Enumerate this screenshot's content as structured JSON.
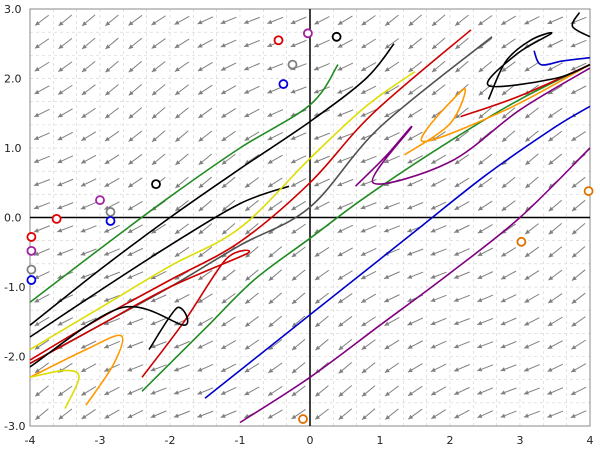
{
  "chart_data": {
    "type": "phase_portrait",
    "xlim": [
      -4,
      4
    ],
    "ylim": [
      -3,
      3
    ],
    "x_ticks": [
      {
        "value": -4,
        "label": "-4"
      },
      {
        "value": -3,
        "label": "-3"
      },
      {
        "value": -2,
        "label": "-2"
      },
      {
        "value": -1,
        "label": "-1"
      },
      {
        "value": 0,
        "label": "0"
      },
      {
        "value": 1,
        "label": "1"
      },
      {
        "value": 2,
        "label": "2"
      },
      {
        "value": 3,
        "label": "3"
      },
      {
        "value": 4,
        "label": "4"
      }
    ],
    "y_ticks": [
      {
        "value": -3,
        "label": "-3.0"
      },
      {
        "value": -2,
        "label": "-2.0"
      },
      {
        "value": -1,
        "label": "-1.0"
      },
      {
        "value": 0,
        "label": "0.0"
      },
      {
        "value": 1,
        "label": "1.0"
      },
      {
        "value": 2,
        "label": "2.0"
      },
      {
        "value": 3,
        "label": "3.0"
      }
    ],
    "grid": true,
    "vector_field": {
      "color": "#808080",
      "x_step": 0.3333,
      "y_step": 0.3333,
      "x_start": -3.83,
      "y_start": -2.83
    },
    "trajectories": [
      {
        "color": "#228b22",
        "points": [
          [
            -4,
            -1.22
          ],
          [
            -3,
            -0.45
          ],
          [
            -2,
            0.3
          ],
          [
            -1,
            1.0
          ],
          [
            0,
            1.62
          ],
          [
            0.4,
            2.2
          ]
        ]
      },
      {
        "color": "#000000",
        "points": [
          [
            -4,
            -1.55
          ],
          [
            -3,
            -0.75
          ],
          [
            -2,
            0.0
          ],
          [
            -1,
            0.7
          ],
          [
            0,
            1.38
          ],
          [
            0.8,
            2.0
          ],
          [
            1.2,
            2.5
          ]
        ]
      },
      {
        "color": "#000000",
        "points": [
          [
            -4,
            -1.72
          ],
          [
            -3,
            -1.05
          ],
          [
            -2,
            -0.4
          ],
          [
            -1,
            0.2
          ],
          [
            -0.3,
            0.45
          ]
        ]
      },
      {
        "color": "#dddd00",
        "points": [
          [
            -4,
            -1.9
          ],
          [
            -3,
            -1.3
          ],
          [
            -2,
            -0.7
          ],
          [
            -1,
            -0.15
          ],
          [
            0,
            0.85
          ],
          [
            0.8,
            1.6
          ],
          [
            1.5,
            2.1
          ]
        ]
      },
      {
        "color": "#cc0000",
        "points": [
          [
            -4,
            -2.05
          ],
          [
            -3,
            -1.45
          ],
          [
            -2,
            -0.9
          ],
          [
            -1,
            -0.35
          ],
          [
            0,
            0.5
          ],
          [
            0.9,
            1.5
          ],
          [
            2.3,
            2.7
          ]
        ]
      },
      {
        "color": "#505050",
        "points": [
          [
            -4,
            -2.1
          ],
          [
            -3,
            -1.55
          ],
          [
            -2,
            -1.0
          ],
          [
            -1,
            -0.4
          ],
          [
            0,
            0.15
          ],
          [
            1,
            1.3
          ],
          [
            2.6,
            2.6
          ]
        ]
      },
      {
        "color": "#228b22",
        "points": [
          [
            -2.4,
            -2.5
          ],
          [
            -1.5,
            -1.6
          ],
          [
            -0.8,
            -0.9
          ],
          [
            0,
            -0.3
          ],
          [
            0.8,
            0.3
          ],
          [
            2,
            1.1
          ],
          [
            3,
            1.7
          ],
          [
            4,
            2.2
          ]
        ]
      },
      {
        "color": "#cc0000",
        "points": [
          [
            -2.4,
            -2.3
          ],
          [
            -1.8,
            -1.5
          ],
          [
            -1.2,
            -0.6
          ],
          [
            -0.9,
            -0.52
          ],
          [
            -2,
            -1.0
          ],
          [
            -3,
            -1.55
          ],
          [
            -4,
            -2.1
          ]
        ]
      },
      {
        "color": "#000000",
        "points": [
          [
            -2.3,
            -1.9
          ],
          [
            -1.9,
            -1.3
          ],
          [
            -1.8,
            -1.55
          ],
          [
            -2.7,
            -1.3
          ],
          [
            -4,
            -2.15
          ]
        ]
      },
      {
        "color": "#ff9900",
        "points": [
          [
            -3.2,
            -2.7
          ],
          [
            -2.8,
            -2.1
          ],
          [
            -2.7,
            -1.7
          ],
          [
            -3.2,
            -1.9
          ],
          [
            -4,
            -2.3
          ]
        ]
      },
      {
        "color": "#dddd00",
        "points": [
          [
            -3.5,
            -2.75
          ],
          [
            -3.3,
            -2.3
          ],
          [
            -3.5,
            -2.2
          ],
          [
            -4,
            -2.3
          ]
        ]
      },
      {
        "color": "#0000cc",
        "points": [
          [
            -1.5,
            -2.6
          ],
          [
            -0.5,
            -1.8
          ],
          [
            0.5,
            -1.0
          ],
          [
            1.5,
            -0.2
          ],
          [
            2.5,
            0.6
          ],
          [
            3.5,
            1.3
          ],
          [
            4,
            1.6
          ]
        ]
      },
      {
        "color": "#800080",
        "points": [
          [
            -1.0,
            -2.95
          ],
          [
            0,
            -2.3
          ],
          [
            1,
            -1.55
          ],
          [
            2,
            -0.8
          ],
          [
            3,
            0.0
          ],
          [
            4,
            1.0
          ]
        ]
      },
      {
        "color": "#800080",
        "points": [
          [
            0.65,
            0.45
          ],
          [
            1.1,
            0.9
          ],
          [
            1.45,
            1.3
          ],
          [
            0.9,
            0.5
          ],
          [
            2,
            0.8
          ],
          [
            3,
            1.55
          ],
          [
            4,
            2.15
          ]
        ]
      },
      {
        "color": "#ff9900",
        "points": [
          [
            1.35,
            0.9
          ],
          [
            2,
            1.35
          ],
          [
            2.2,
            1.85
          ],
          [
            1.6,
            1.1
          ],
          [
            2.8,
            1.55
          ],
          [
            4,
            2.2
          ]
        ]
      },
      {
        "color": "#cc0000",
        "points": [
          [
            2.15,
            1.45
          ],
          [
            3,
            1.75
          ],
          [
            4,
            2.2
          ]
        ]
      },
      {
        "color": "#000000",
        "points": [
          [
            2.55,
            1.7
          ],
          [
            2.8,
            2.25
          ],
          [
            3.15,
            2.55
          ],
          [
            3.45,
            2.65
          ],
          [
            2.95,
            2.35
          ],
          [
            2.55,
            1.9
          ],
          [
            3.5,
            2.0
          ],
          [
            4,
            2.2
          ]
        ]
      },
      {
        "color": "#0000cc",
        "points": [
          [
            3.2,
            2.4
          ],
          [
            3.3,
            2.2
          ],
          [
            3.6,
            2.25
          ],
          [
            4,
            2.3
          ]
        ]
      },
      {
        "color": "#000000",
        "points": [
          [
            3.85,
            2.95
          ],
          [
            3.75,
            2.75
          ],
          [
            4,
            2.6
          ]
        ]
      }
    ],
    "initial_points": [
      {
        "x": -0.45,
        "y": 2.55,
        "color": "#e00000"
      },
      {
        "x": -0.03,
        "y": 2.65,
        "color": "#a020a0"
      },
      {
        "x": 0.38,
        "y": 2.6,
        "color": "#000000"
      },
      {
        "x": -0.25,
        "y": 2.2,
        "color": "#808080"
      },
      {
        "x": -0.38,
        "y": 1.92,
        "color": "#0000e0"
      },
      {
        "x": -2.2,
        "y": 0.48,
        "color": "#000000"
      },
      {
        "x": -3.0,
        "y": 0.25,
        "color": "#a020a0"
      },
      {
        "x": -2.85,
        "y": 0.08,
        "color": "#808080"
      },
      {
        "x": -2.85,
        "y": -0.05,
        "color": "#0000e0"
      },
      {
        "x": -3.62,
        "y": -0.02,
        "color": "#e00000"
      },
      {
        "x": -3.98,
        "y": -0.28,
        "color": "#e00000"
      },
      {
        "x": -3.98,
        "y": -0.48,
        "color": "#a020a0"
      },
      {
        "x": -3.98,
        "y": -0.75,
        "color": "#808080"
      },
      {
        "x": -3.98,
        "y": -0.9,
        "color": "#0000e0"
      },
      {
        "x": 3.02,
        "y": -0.35,
        "color": "#e07000"
      },
      {
        "x": 3.98,
        "y": 0.38,
        "color": "#e07000"
      },
      {
        "x": -0.1,
        "y": -2.9,
        "color": "#e07000"
      }
    ]
  }
}
